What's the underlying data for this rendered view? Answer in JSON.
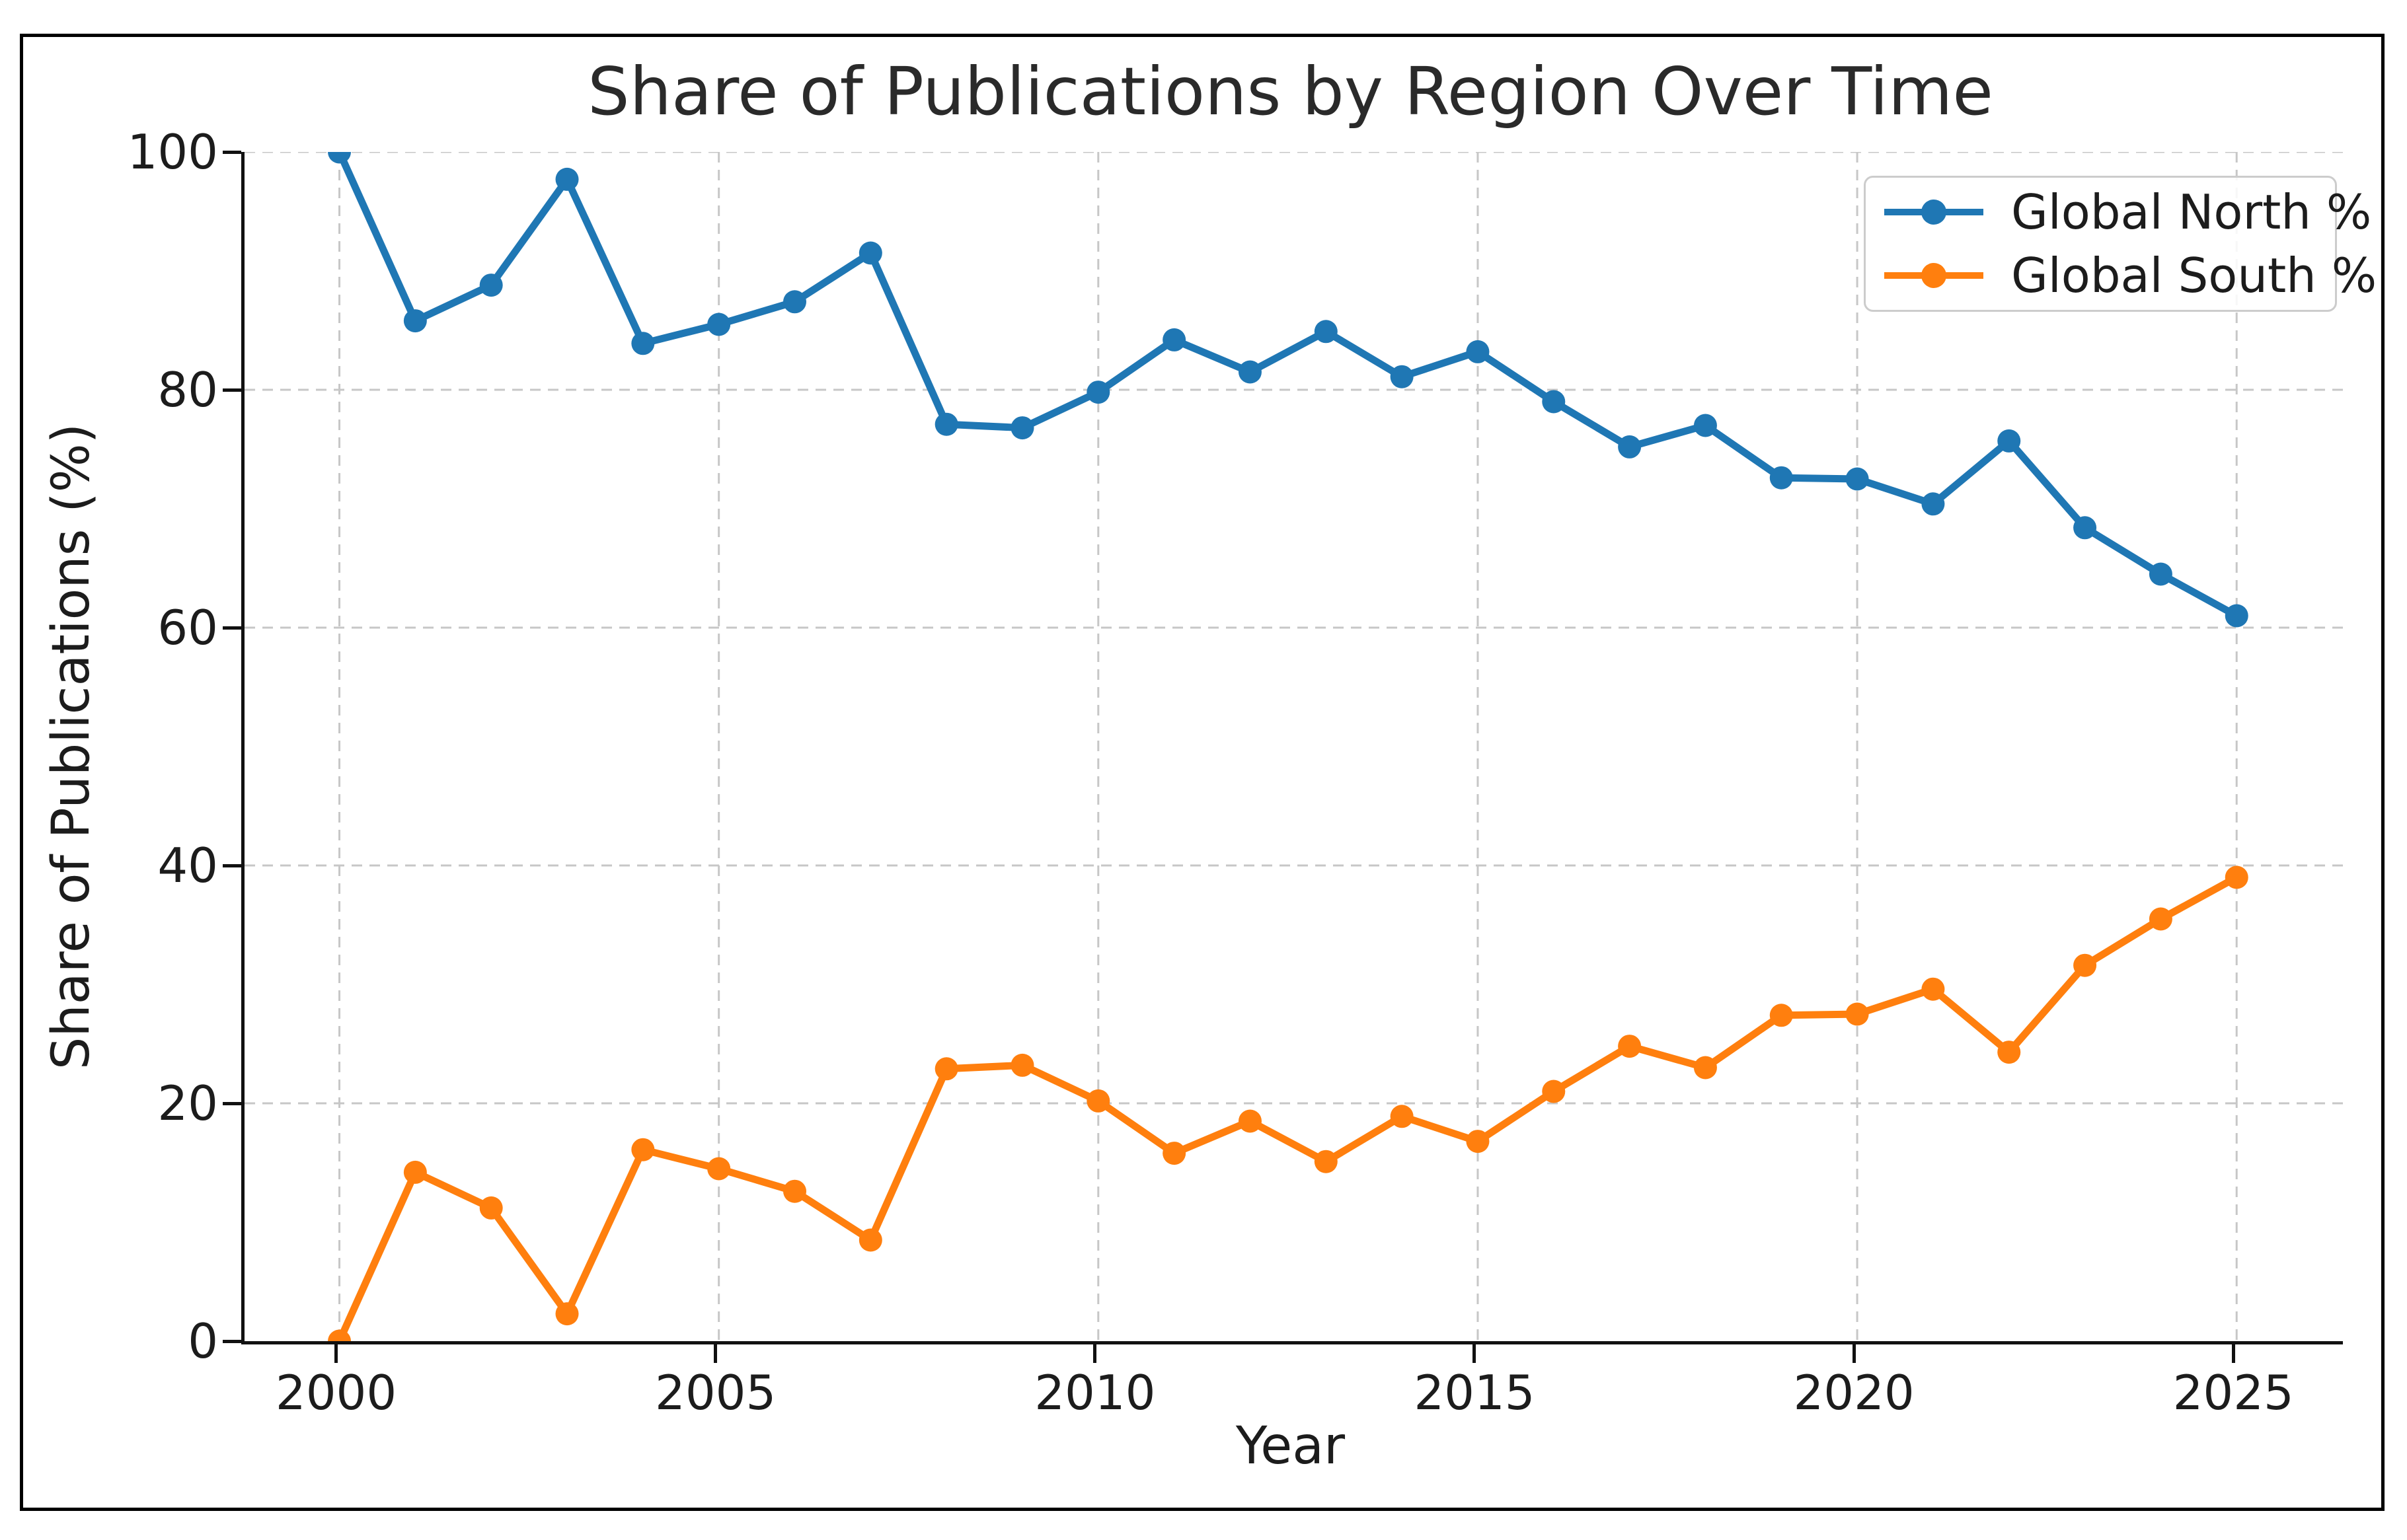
{
  "figure": {
    "title": "Share of Publications by Region Over Time"
  },
  "chart_data": {
    "type": "line",
    "title": "Share of Publications by Region Over Time",
    "xlabel": "Year",
    "ylabel": "Share of Publications (%)",
    "x": [
      2000,
      2001,
      2002,
      2003,
      2004,
      2005,
      2006,
      2007,
      2008,
      2009,
      2010,
      2011,
      2012,
      2013,
      2014,
      2015,
      2016,
      2017,
      2018,
      2019,
      2020,
      2021,
      2022,
      2023,
      2024,
      2025
    ],
    "series": [
      {
        "name": "Global North %",
        "color": "#1f77b4",
        "values": [
          100.0,
          85.8,
          88.8,
          97.7,
          83.9,
          85.5,
          87.4,
          91.5,
          77.1,
          76.8,
          79.8,
          84.2,
          81.5,
          84.9,
          81.1,
          83.2,
          79.0,
          75.2,
          77.0,
          72.6,
          72.5,
          70.4,
          75.7,
          68.4,
          64.5,
          61.0
        ]
      },
      {
        "name": "Global South %",
        "color": "#ff7f0e",
        "values": [
          0.0,
          14.2,
          11.2,
          2.3,
          16.1,
          14.5,
          12.6,
          8.5,
          22.9,
          23.2,
          20.2,
          15.8,
          18.5,
          15.1,
          18.9,
          16.8,
          21.0,
          24.8,
          23.0,
          27.4,
          27.5,
          29.6,
          24.3,
          31.6,
          35.5,
          39.0
        ]
      }
    ],
    "xticks": [
      2000,
      2005,
      2010,
      2015,
      2020,
      2025
    ],
    "yticks": [
      0,
      20,
      40,
      60,
      80,
      100
    ],
    "xlim": [
      1998.75,
      2026.4
    ],
    "ylim": [
      0,
      100
    ],
    "grid": true,
    "grid_color": "#c7c7c7",
    "legend_position": "upper right"
  }
}
